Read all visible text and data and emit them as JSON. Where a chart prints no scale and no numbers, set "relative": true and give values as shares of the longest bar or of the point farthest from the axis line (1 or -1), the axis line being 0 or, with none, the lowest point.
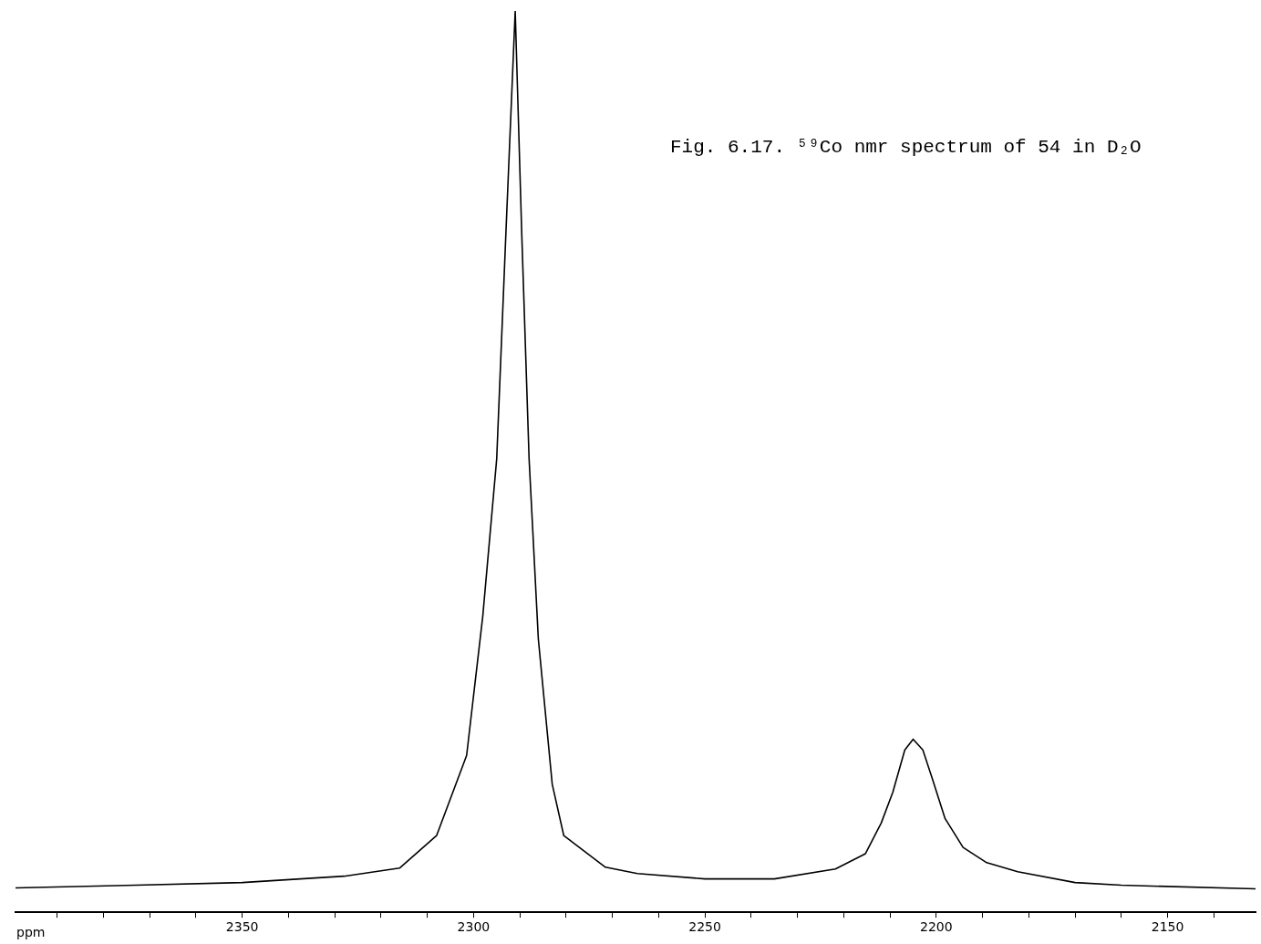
{
  "chart_data": {
    "type": "line",
    "title": "Fig. 6.17.  ⁵⁹Co nmr spectrum of 54 in D₂O",
    "xlabel": "ppm",
    "relative": true,
    "xlim": [
      2399,
      2131
    ],
    "xticks": [
      {
        "value": 2390,
        "label": null
      },
      {
        "value": 2380,
        "label": null
      },
      {
        "value": 2370,
        "label": null
      },
      {
        "value": 2360,
        "label": null
      },
      2350,
      {
        "value": 2340,
        "label": null
      },
      {
        "value": 2330,
        "label": null
      },
      {
        "value": 2320,
        "label": null
      },
      {
        "value": 2310,
        "label": null
      },
      2300,
      {
        "value": 2290,
        "label": null
      },
      {
        "value": 2280,
        "label": null
      },
      {
        "value": 2270,
        "label": null
      },
      {
        "value": 2260,
        "label": null
      },
      2250,
      {
        "value": 2240,
        "label": null
      },
      {
        "value": 2230,
        "label": null
      },
      {
        "value": 2220,
        "label": null
      },
      {
        "value": 2210,
        "label": null
      },
      2200,
      {
        "value": 2190,
        "label": null
      },
      {
        "value": 2180,
        "label": null
      },
      {
        "value": 2170,
        "label": null
      },
      {
        "value": 2160,
        "label": null
      },
      2150,
      {
        "value": 2140,
        "label": null
      }
    ],
    "series": [
      {
        "color": "#000000",
        "x": [
          2399,
          2373,
          2350,
          2328,
          2316,
          2308,
          2301.5,
          2298,
          2295,
          2293,
          2291,
          2289.6,
          2288,
          2286,
          2283,
          2280.5,
          2271.5,
          2264.6,
          2250,
          2235,
          2221.8,
          2215.3,
          2211.9,
          2209.4,
          2206.8,
          2205,
          2202.9,
          2200.9,
          2198.1,
          2194.2,
          2189.1,
          2182.4,
          2170,
          2160,
          2131
        ],
        "values": [
          0.027,
          0.03,
          0.033,
          0.04,
          0.049,
          0.085,
          0.174,
          0.329,
          0.503,
          0.755,
          1,
          0.755,
          0.503,
          0.303,
          0.142,
          0.085,
          0.05,
          0.043,
          0.037,
          0.037,
          0.048,
          0.065,
          0.099,
          0.133,
          0.18,
          0.192,
          0.18,
          0.149,
          0.104,
          0.072,
          0.055,
          0.045,
          0.033,
          0.03,
          0.026
        ]
      }
    ]
  }
}
